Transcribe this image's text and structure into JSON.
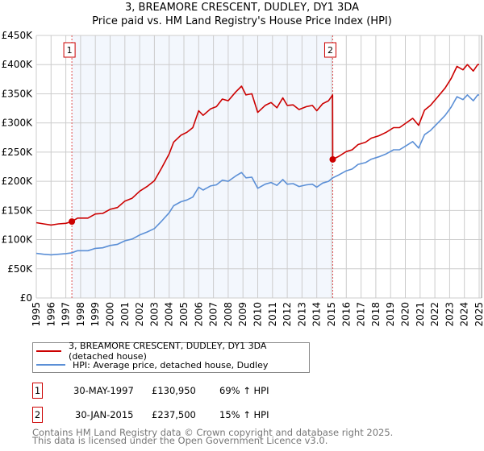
{
  "chart_data": {
    "type": "line",
    "title": "3, BREAMORE CRESCENT, DUDLEY, DY1 3DA",
    "subtitle": "Price paid vs. HM Land Registry's House Price Index (HPI)",
    "ylim": [
      0,
      450000
    ],
    "xlim": [
      1995,
      2025
    ],
    "yticks": [
      "£0",
      "£50K",
      "£100K",
      "£150K",
      "£200K",
      "£250K",
      "£300K",
      "£350K",
      "£400K",
      "£450K"
    ],
    "xticks": [
      "1995",
      "1996",
      "1997",
      "1998",
      "1999",
      "2000",
      "2001",
      "2002",
      "2003",
      "2004",
      "2005",
      "2006",
      "2007",
      "2008",
      "2009",
      "2010",
      "2011",
      "2012",
      "2013",
      "2014",
      "2015",
      "2016",
      "2017",
      "2018",
      "2019",
      "2020",
      "2021",
      "2022",
      "2023",
      "2024",
      "2025"
    ],
    "grid": true,
    "series": [
      {
        "name": "3, BREAMORE CRESCENT, DUDLEY, DY1 3DA (detached house)",
        "color": "#cc0000",
        "x": [
          1995,
          1995.5,
          1996,
          1996.5,
          1997,
          1997.41,
          1997.8,
          1998.5,
          1999,
          1999.5,
          2000,
          2000.5,
          2001,
          2001.5,
          2002,
          2002.5,
          2003,
          2003.5,
          2004,
          2004.3,
          2004.8,
          2005.2,
          2005.6,
          2006,
          2006.3,
          2006.8,
          2007.2,
          2007.6,
          2008,
          2008.5,
          2008.9,
          2009.2,
          2009.6,
          2010,
          2010.5,
          2010.9,
          2011.3,
          2011.7,
          2012,
          2012.4,
          2012.8,
          2013.3,
          2013.7,
          2014,
          2014.4,
          2014.8,
          2015.07,
          2015.08,
          2015.5,
          2016,
          2016.4,
          2016.8,
          2017.3,
          2017.7,
          2018.2,
          2018.7,
          2019.2,
          2019.6,
          2020,
          2020.5,
          2020.9,
          2021.3,
          2021.7,
          2022.2,
          2022.7,
          2023.1,
          2023.5,
          2023.9,
          2024.2,
          2024.6,
          2024.9,
          2025
        ],
        "y": [
          129,
          127,
          125,
          127,
          128,
          131,
          137,
          137,
          144,
          145,
          152,
          155,
          166,
          171,
          183,
          191,
          201,
          223,
          247,
          267,
          279,
          284,
          292,
          321,
          313,
          324,
          328,
          341,
          338,
          353,
          363,
          348,
          350,
          318,
          330,
          335,
          326,
          343,
          330,
          331,
          323,
          328,
          330,
          321,
          333,
          338,
          348,
          237.5,
          243,
          251,
          254,
          263,
          267,
          274,
          278,
          284,
          292,
          292,
          299,
          308,
          296,
          322,
          330,
          345,
          360,
          376,
          397,
          391,
          400,
          389,
          400,
          400
        ]
      },
      {
        "name": "HPI: Average price, detached house, Dudley",
        "color": "#5b8fd6",
        "x": [
          1995,
          1995.5,
          1996,
          1996.5,
          1997,
          1997.41,
          1997.8,
          1998.5,
          1999,
          1999.5,
          2000,
          2000.5,
          2001,
          2001.5,
          2002,
          2002.5,
          2003,
          2003.5,
          2004,
          2004.3,
          2004.8,
          2005.2,
          2005.6,
          2006,
          2006.3,
          2006.8,
          2007.2,
          2007.6,
          2008,
          2008.5,
          2008.9,
          2009.2,
          2009.6,
          2010,
          2010.5,
          2010.9,
          2011.3,
          2011.7,
          2012,
          2012.4,
          2012.8,
          2013.3,
          2013.7,
          2014,
          2014.4,
          2014.8,
          2015.08,
          2015.5,
          2016,
          2016.4,
          2016.8,
          2017.3,
          2017.7,
          2018.2,
          2018.7,
          2019.2,
          2019.6,
          2020,
          2020.5,
          2020.9,
          2021.3,
          2021.7,
          2022.2,
          2022.7,
          2023.1,
          2023.5,
          2023.9,
          2024.2,
          2024.6,
          2024.9,
          2025
        ],
        "y": [
          76.5,
          75,
          74,
          75,
          76,
          77.5,
          81,
          81,
          85,
          86,
          90,
          92,
          98,
          101,
          108,
          113,
          119,
          132,
          146,
          158,
          165,
          168,
          173,
          190,
          185,
          192,
          194,
          202,
          200,
          209,
          215,
          206,
          207,
          188,
          195,
          198,
          193,
          203,
          195,
          196,
          191,
          194,
          195,
          190,
          197,
          200,
          206,
          211,
          218,
          221,
          229,
          232,
          238,
          242,
          247,
          254,
          254,
          260,
          268,
          257,
          280,
          287,
          300,
          313,
          327,
          345,
          340,
          348,
          338,
          348,
          348
        ]
      }
    ],
    "y_unit": "thousands GBP",
    "shaded_range": [
      1997.41,
      2015.08
    ],
    "markers": [
      {
        "label": "1",
        "x": 1997.41,
        "y": 130.95
      },
      {
        "label": "2",
        "x": 2015.08,
        "y": 237.5
      }
    ]
  },
  "transactions": [
    {
      "n": "1",
      "date": "30-MAY-1997",
      "price": "£130,950",
      "hpi": "69% ↑ HPI"
    },
    {
      "n": "2",
      "date": "30-JAN-2015",
      "price": "£237,500",
      "hpi": "15% ↑ HPI"
    }
  ],
  "footer": [
    "Contains HM Land Registry data © Crown copyright and database right 2025.",
    "This data is licensed under the Open Government Licence v3.0."
  ]
}
